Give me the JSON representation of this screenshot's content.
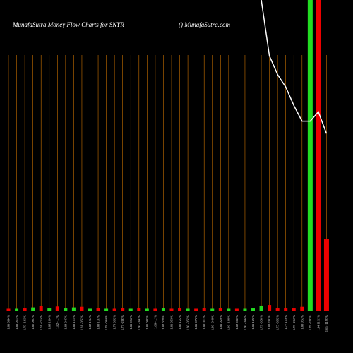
{
  "chart_data": {
    "type": "bar",
    "title": "MunafaSutra  Money Flow  Charts for SNYR",
    "subtitle": "() MunafaSutra.com",
    "categories": [
      "1.83 0.04%",
      "1.83 0.15%",
      "1.79 -1.65%",
      "1.82 0.67%",
      "1.81 -2.14%",
      "1.85 1.64%",
      "1.82 -1.1%",
      "1.84 0.47%",
      "1.83 1.14%",
      "1.81 -0.52%",
      "1.82 1.34%",
      "1.80 1.37%",
      "1.78 -0.66%",
      "1.79 0.92%",
      "1.77 -2.03%",
      "1.81 0.52%",
      "1.80 -0.43%",
      "1.81 0.83%",
      "1.80 -1.1%",
      "1.82 0.29%",
      "1.81 0.56%",
      "1.82 1.22%",
      "1.80 -0.55%",
      "1.81 0.72%",
      "1.80 0.13%",
      "1.80 -0.40%",
      "1.81 0.26%",
      "1.80 -1.09%",
      "1.82 0.85%",
      "1.80 -0.44%",
      "1.81 1.22%",
      "1.79 -0.56%",
      "1.80 2.81%",
      "1.75 -0.92%",
      "1.77 1.16%",
      "1.75 -2.67%",
      "1.80 0.52%",
      "1.79 -2.92%",
      "1.84 11.11%",
      "1.66 -11.93%"
    ],
    "values": [
      0.8,
      0.8,
      0.9,
      1.0,
      1.5,
      0.9,
      1.3,
      0.9,
      1.0,
      1.2,
      0.8,
      0.9,
      0.8,
      0.8,
      0.9,
      0.8,
      0.9,
      0.8,
      0.8,
      0.9,
      0.8,
      0.9,
      0.8,
      0.8,
      0.9,
      0.8,
      0.9,
      0.8,
      0.8,
      0.8,
      0.9,
      1.6,
      1.8,
      0.9,
      0.9,
      0.9,
      1.2,
      100,
      100,
      23
    ],
    "colors": [
      "#e00",
      "#2d2",
      "#e00",
      "#2d2",
      "#e00",
      "#2d2",
      "#e00",
      "#2d2",
      "#2d2",
      "#e00",
      "#2d2",
      "#e00",
      "#2d2",
      "#e00",
      "#e00",
      "#2d2",
      "#e00",
      "#2d2",
      "#e00",
      "#2d2",
      "#e00",
      "#e00",
      "#2d2",
      "#e00",
      "#e00",
      "#2d2",
      "#e00",
      "#2d2",
      "#e00",
      "#2d2",
      "#2d2",
      "#2d2",
      "#e00",
      "#e00",
      "#e00",
      "#e00",
      "#e00",
      "#2d2",
      "#e00",
      "#e00"
    ],
    "line": {
      "color": "#fff",
      "values": [
        null,
        null,
        null,
        null,
        null,
        null,
        null,
        null,
        null,
        null,
        null,
        null,
        null,
        null,
        null,
        null,
        null,
        null,
        null,
        null,
        null,
        null,
        null,
        null,
        null,
        null,
        null,
        null,
        null,
        null,
        null,
        100,
        82,
        76,
        72,
        66,
        61,
        61,
        64,
        57
      ]
    },
    "ylim": [
      0,
      100
    ],
    "grid": true,
    "grid_color": "#c87000"
  }
}
